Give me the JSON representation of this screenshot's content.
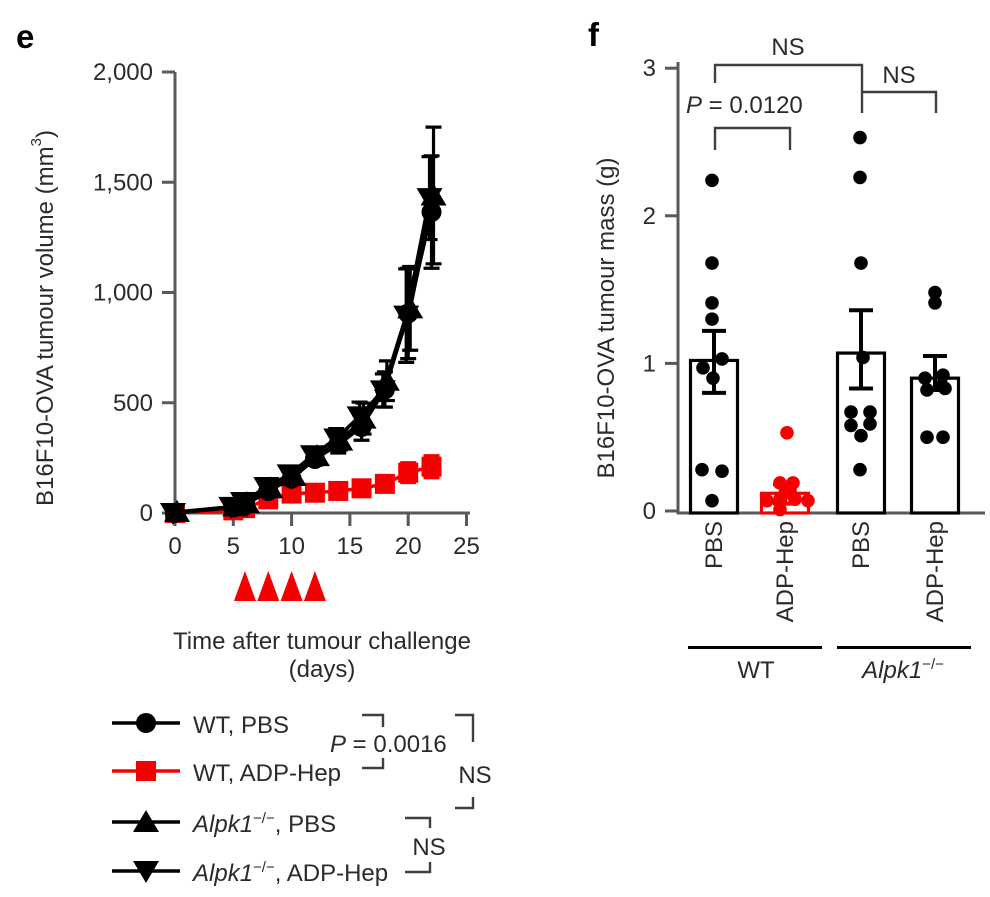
{
  "colors": {
    "red": "#f40000",
    "black": "#000000",
    "axis": "#58595b",
    "text": "#2b2b2d"
  },
  "panels": {
    "e": {
      "letter": "e",
      "y_label": {
        "pre": "B16F10-OVA tumour volume (mm",
        "sup": "3",
        "post": ")"
      },
      "x_label_line1": "Time after tumour challenge",
      "x_label_line2": "(days)",
      "legend": [
        {
          "marker": "circle",
          "color": "#000000",
          "pre": "",
          "sup": "",
          "rest": "WT, PBS"
        },
        {
          "marker": "square",
          "color": "#f40000",
          "pre": "",
          "sup": "",
          "rest": "WT, ADP-Hep"
        },
        {
          "marker": "triangle-up",
          "color": "#000000",
          "pre": "Alpk1",
          "sup": "−/−",
          "rest": ", PBS"
        },
        {
          "marker": "triangle-down",
          "color": "#000000",
          "pre": "Alpk1",
          "sup": "−/−",
          "rest": ", ADP-Hep"
        }
      ],
      "stats": {
        "p_italic": "P",
        "p_rest": " = 0.0016",
        "ns_outer": "NS",
        "ns_inner": "NS"
      }
    },
    "f": {
      "letter": "f",
      "y_label": {
        "pre": "B16F10-OVA tumour mass (g)",
        "sup": "",
        "post": ""
      },
      "bar_labels": [
        "PBS",
        "ADP-Hep",
        "PBS",
        "ADP-Hep"
      ],
      "group_labels": [
        {
          "plain": "WT",
          "italic": "",
          "sup": ""
        },
        {
          "plain": "",
          "italic": "Alpk1",
          "sup": "−/−"
        }
      ],
      "stats": {
        "ns_wide": "NS",
        "ns_right": "NS",
        "p_italic": "P",
        "p_rest": " = 0.0120"
      }
    }
  },
  "chart_data": [
    {
      "type": "line",
      "title": "",
      "xlabel": "Time after tumour challenge (days)",
      "ylabel": "B16F10-OVA tumour volume (mm³)",
      "xlim": [
        0,
        25
      ],
      "ylim": [
        0,
        2000
      ],
      "xticks": [
        "0",
        "5",
        "10",
        "15",
        "20",
        "25"
      ],
      "xtick_values": [
        0,
        5,
        10,
        15,
        20,
        25
      ],
      "yticks": [
        "0",
        "500",
        "1,000",
        "1,500",
        "2,000"
      ],
      "ytick_values": [
        0,
        500,
        1000,
        1500,
        2000
      ],
      "grid": false,
      "legend_position": "below",
      "x": [
        0,
        5,
        6,
        8,
        10,
        12,
        14,
        16,
        18,
        20,
        22
      ],
      "injection_arrow_days": [
        6,
        8,
        10,
        12
      ],
      "arrow_color": "#f40000",
      "series": [
        {
          "name": "WT, ADP-Hep",
          "marker": "square",
          "color": "#f40000",
          "dx": 0,
          "values": [
            0,
            12,
            22,
            62,
            88,
            92,
            100,
            112,
            132,
            183,
            210
          ],
          "errors": [
            0,
            4,
            5,
            8,
            10,
            12,
            15,
            18,
            25,
            45,
            50
          ]
        },
        {
          "name": "Alpk1−/−, ADP-Hep",
          "marker": "triangle-down",
          "color": "#000000",
          "dx": -2,
          "values": [
            0,
            28,
            50,
            118,
            175,
            262,
            338,
            438,
            556,
            895,
            1428
          ],
          "errors": [
            0,
            6,
            8,
            15,
            20,
            30,
            45,
            65,
            75,
            212,
            188
          ]
        },
        {
          "name": "WT, PBS",
          "marker": "circle",
          "color": "#000000",
          "dx": 0,
          "values": [
            0,
            25,
            35,
            100,
            155,
            245,
            310,
            390,
            560,
            905,
            1365
          ],
          "errors": [
            0,
            6,
            8,
            15,
            20,
            28,
            38,
            60,
            80,
            205,
            255
          ]
        },
        {
          "name": "Alpk1−/−, PBS",
          "marker": "triangle-up",
          "color": "#000000",
          "dx": 2,
          "values": [
            5,
            30,
            45,
            112,
            168,
            258,
            328,
            428,
            600,
            928,
            1440
          ],
          "errors": [
            0,
            6,
            8,
            15,
            20,
            28,
            42,
            70,
            90,
            190,
            310
          ]
        }
      ],
      "stats": {
        "wt_pbs_vs_wt_adphep": "P = 0.0016",
        "wt_vs_alpk1_pbs": "NS",
        "alpk1_pbs_vs_alpk1_adphep": "NS"
      }
    },
    {
      "type": "bar-scatter",
      "title": "",
      "ylabel": "B16F10-OVA tumour mass (g)",
      "ylim": [
        0,
        3
      ],
      "yticks": [
        "0",
        "1",
        "2",
        "3"
      ],
      "ytick_values": [
        0,
        1,
        2,
        3
      ],
      "grid": false,
      "categories": [
        "PBS",
        "ADP-Hep",
        "PBS",
        "ADP-Hep"
      ],
      "groups": [
        "WT",
        "Alpk1−/−"
      ],
      "bar_means": [
        1.02,
        0.12,
        1.07,
        0.9
      ],
      "bar_err_low": [
        0.8,
        0.05,
        0.83,
        0.82
      ],
      "bar_err_high": [
        1.22,
        0.18,
        1.36,
        1.05
      ],
      "bar_colors": [
        "#000000",
        "#f40000",
        "#000000",
        "#000000"
      ],
      "point_colors": [
        "#000000",
        "#f40000",
        "#000000",
        "#000000"
      ],
      "points": [
        [
          [
            -2,
            2.24
          ],
          [
            -2,
            1.68
          ],
          [
            -2,
            1.41
          ],
          [
            -2,
            1.3
          ],
          [
            8,
            1.03
          ],
          [
            -11,
            0.97
          ],
          [
            -1,
            0.9
          ],
          [
            -12,
            0.28
          ],
          [
            8,
            0.27
          ],
          [
            -2,
            0.07
          ]
        ],
        [
          [
            2,
            0.53
          ],
          [
            -5,
            0.19
          ],
          [
            8,
            0.19
          ],
          [
            5,
            0.14
          ],
          [
            0,
            0.12
          ],
          [
            -18,
            0.07
          ],
          [
            -5,
            0.08
          ],
          [
            10,
            0.08
          ],
          [
            23,
            0.07
          ],
          [
            -5,
            0.01
          ]
        ],
        [
          [
            -1,
            2.53
          ],
          [
            -1,
            2.26
          ],
          [
            0,
            1.68
          ],
          [
            2,
            1.04
          ],
          [
            -10,
            0.67
          ],
          [
            9,
            0.67
          ],
          [
            -10,
            0.58
          ],
          [
            9,
            0.59
          ],
          [
            0,
            0.51
          ],
          [
            -1,
            0.28
          ]
        ],
        [
          [
            0,
            1.48
          ],
          [
            0,
            1.41
          ],
          [
            -10,
            0.9
          ],
          [
            8,
            0.92
          ],
          [
            -8,
            0.82
          ],
          [
            7,
            0.85
          ],
          [
            10,
            0.83
          ],
          [
            -8,
            0.5
          ],
          [
            8,
            0.5
          ]
        ]
      ],
      "stats": {
        "wt_pbs_vs_wt_adphep": "P = 0.0120",
        "wt_vs_alpk1_pbs": "NS",
        "alpk1_pbs_vs_alpk1_adphep": "NS"
      }
    }
  ]
}
